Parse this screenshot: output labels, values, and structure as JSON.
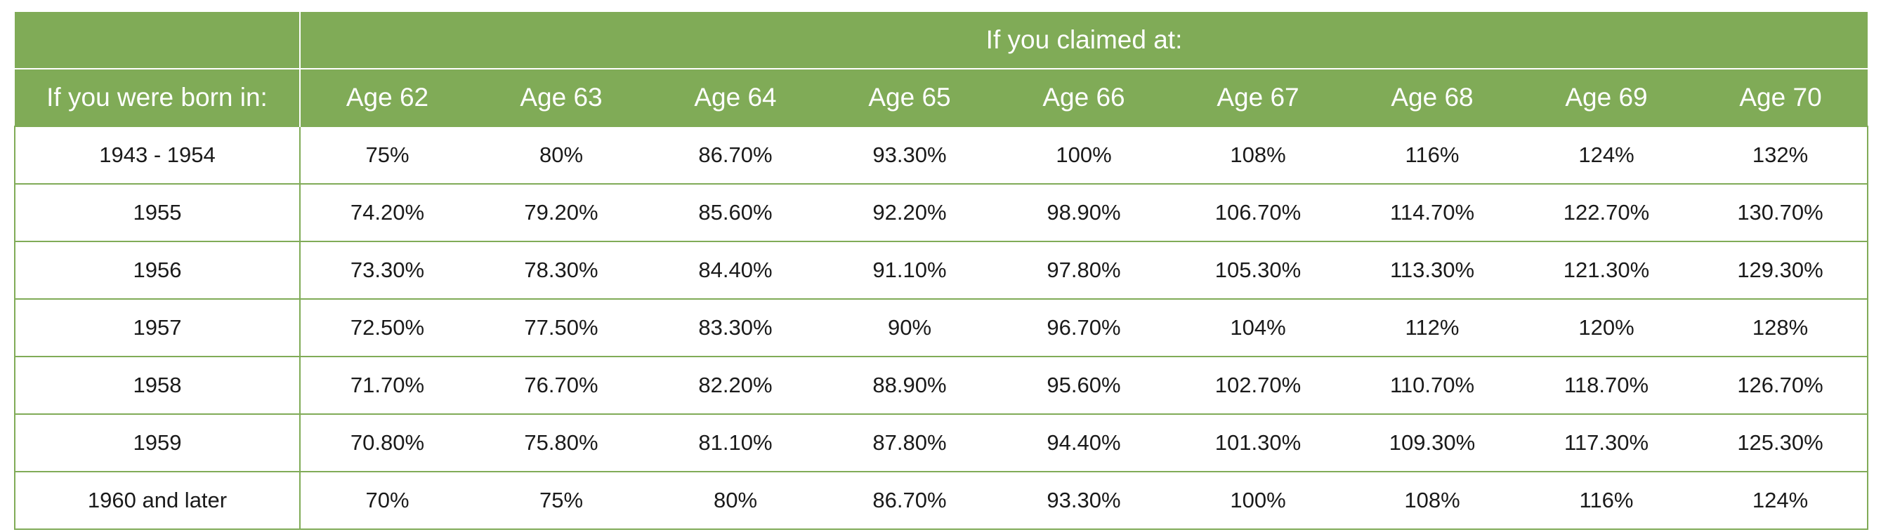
{
  "header": {
    "claimed_label": "If you claimed at:",
    "born_label": "If you were born in:",
    "ages": [
      "Age 62",
      "Age 63",
      "Age 64",
      "Age 65",
      "Age 66",
      "Age 67",
      "Age 68",
      "Age 69",
      "Age 70"
    ]
  },
  "rows": [
    {
      "born": "1943 - 1954",
      "values": [
        "75%",
        "80%",
        "86.70%",
        "93.30%",
        "100%",
        "108%",
        "116%",
        "124%",
        "132%"
      ]
    },
    {
      "born": "1955",
      "values": [
        "74.20%",
        "79.20%",
        "85.60%",
        "92.20%",
        "98.90%",
        "106.70%",
        "114.70%",
        "122.70%",
        "130.70%"
      ]
    },
    {
      "born": "1956",
      "values": [
        "73.30%",
        "78.30%",
        "84.40%",
        "91.10%",
        "97.80%",
        "105.30%",
        "113.30%",
        "121.30%",
        "129.30%"
      ]
    },
    {
      "born": "1957",
      "values": [
        "72.50%",
        "77.50%",
        "83.30%",
        "90%",
        "96.70%",
        "104%",
        "112%",
        "120%",
        "128%"
      ]
    },
    {
      "born": "1958",
      "values": [
        "71.70%",
        "76.70%",
        "82.20%",
        "88.90%",
        "95.60%",
        "102.70%",
        "110.70%",
        "118.70%",
        "126.70%"
      ]
    },
    {
      "born": "1959",
      "values": [
        "70.80%",
        "75.80%",
        "81.10%",
        "87.80%",
        "94.40%",
        "101.30%",
        "109.30%",
        "117.30%",
        "125.30%"
      ]
    },
    {
      "born": "1960 and later",
      "values": [
        "70%",
        "75%",
        "80%",
        "86.70%",
        "93.30%",
        "100%",
        "108%",
        "116%",
        "124%"
      ]
    }
  ],
  "colors": {
    "header_bg": "#80ab57",
    "border": "#80ab57"
  }
}
